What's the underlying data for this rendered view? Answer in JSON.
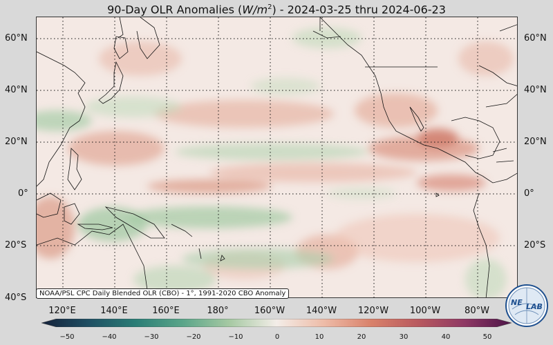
{
  "title": {
    "prefix": "90-Day OLR Anomalies (",
    "unit_base": "W/m",
    "unit_exp": "2",
    "suffix": ") - 2024-03-25 thru 2024-06-23"
  },
  "map": {
    "lat_labels": [
      "60°N",
      "40°N",
      "20°N",
      "0°",
      "20°S",
      "40°S"
    ],
    "lon_labels": [
      "120°E",
      "140°E",
      "160°E",
      "180°",
      "160°W",
      "140°W",
      "120°W",
      "100°W",
      "80°W"
    ],
    "source_note": "NOAA/PSL CPC Daily Blended OLR (CBO) - 1°, 1991-2020 CBO Anomaly"
  },
  "colorbar": {
    "ticks": [
      "−50",
      "−40",
      "−30",
      "−20",
      "−10",
      "0",
      "10",
      "20",
      "30",
      "40",
      "50"
    ],
    "colors": [
      "#14213a",
      "#1f4f63",
      "#2a7d76",
      "#5aa589",
      "#a6c9a3",
      "#f3ede8",
      "#eebca8",
      "#d9826b",
      "#b95a5f",
      "#8e3864",
      "#4d1448"
    ]
  },
  "logo": {
    "text_left": "NE",
    "text_right": "LAB"
  },
  "colors": {
    "background": "#d9d9d9",
    "neutral": "#f4e9e4",
    "positive": "#e2a090",
    "negative": "#9cc8a2",
    "coast": "#111111"
  }
}
